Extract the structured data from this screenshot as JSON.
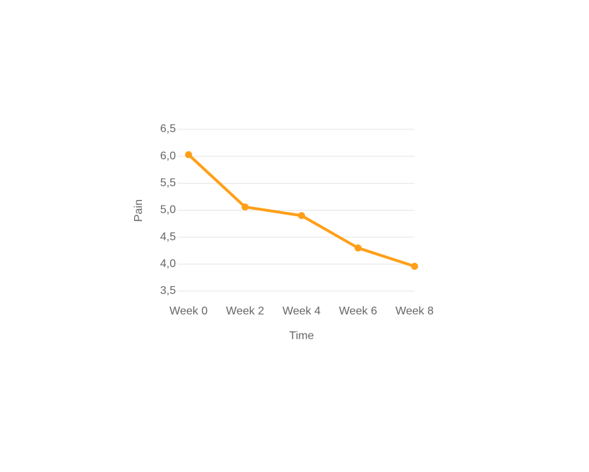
{
  "chart_data": {
    "type": "line",
    "x_label": "Time",
    "y_label": "Pain",
    "categories": [
      "Week 0",
      "Week 2",
      "Week 4",
      "Week 6",
      "Week 8"
    ],
    "values": [
      6.03,
      5.06,
      4.9,
      4.3,
      3.96
    ],
    "color": "#ff9f18",
    "ylim": [
      3.5,
      6.5
    ],
    "yticks": [
      {
        "value": 3.5,
        "label": "3,5"
      },
      {
        "value": 4,
        "label": "4,0"
      },
      {
        "value": 4.5,
        "label": "4,5"
      },
      {
        "value": 5,
        "label": "5,0"
      },
      {
        "value": 5.5,
        "label": "5,5"
      },
      {
        "value": 6,
        "label": "6,0"
      },
      {
        "value": 6.5,
        "label": "6,5"
      }
    ],
    "grid": true
  }
}
